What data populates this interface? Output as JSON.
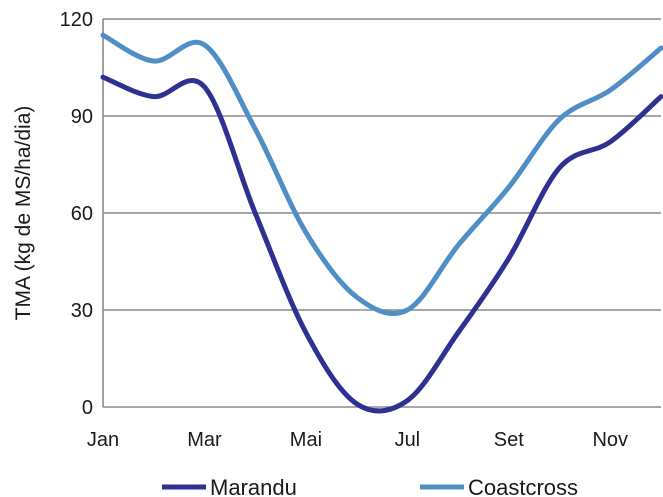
{
  "chart_data": {
    "type": "line",
    "title": "",
    "xlabel": "",
    "ylabel": "TMA (kg de MS/ha/dia)",
    "x": [
      1,
      2,
      3,
      4,
      5,
      6,
      7,
      8,
      9,
      10,
      11,
      12
    ],
    "xtick_positions": [
      1,
      3,
      5,
      7,
      9,
      11
    ],
    "xtick_labels": [
      "Jan",
      "Mar",
      "Mai",
      "Jul",
      "Set",
      "Nov"
    ],
    "xlim": [
      1,
      12
    ],
    "ylim": [
      0,
      120
    ],
    "yticks": [
      0,
      30,
      60,
      90,
      120
    ],
    "ytick_labels": [
      "0",
      "30",
      "60",
      "90",
      "120"
    ],
    "grid": true,
    "legend_position": "bottom",
    "series": [
      {
        "name": "Marandu",
        "color": "#2e3192",
        "values": [
          102,
          96,
          99,
          60,
          23,
          1,
          2,
          23,
          46,
          74,
          82,
          96
        ]
      },
      {
        "name": "Coastcross",
        "color": "#4f8fc6",
        "values": [
          115,
          107,
          112,
          86,
          54,
          34,
          30,
          50,
          68,
          89,
          98,
          111
        ]
      }
    ]
  }
}
